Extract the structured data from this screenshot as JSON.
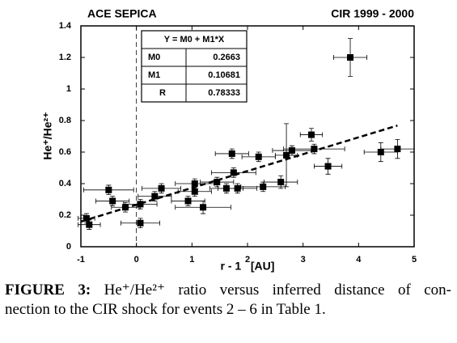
{
  "chart_data": {
    "type": "scatter",
    "title": "ACE SEPICA",
    "subtitle": "CIR 1999 - 2000",
    "x_label": "r - 1   [AU]",
    "y_label": "He⁺/He²⁺",
    "x": [
      -0.9,
      -0.85,
      -0.5,
      -0.43,
      -0.2,
      0.07,
      0.07,
      0.33,
      0.45,
      0.93,
      1.05,
      1.05,
      1.2,
      1.45,
      1.62,
      1.75,
      1.72,
      1.82,
      2.2,
      2.28,
      2.6,
      2.7,
      2.8,
      3.15,
      3.2,
      3.45,
      3.85,
      4.4,
      4.7
    ],
    "values": [
      0.18,
      0.14,
      0.36,
      0.29,
      0.25,
      0.27,
      0.15,
      0.32,
      0.37,
      0.29,
      0.35,
      0.4,
      0.25,
      0.41,
      0.37,
      0.47,
      0.59,
      0.37,
      0.57,
      0.38,
      0.41,
      0.58,
      0.61,
      0.71,
      0.62,
      0.51,
      1.2,
      0.6,
      0.62
    ],
    "xerr": [
      0.15,
      0.2,
      0.45,
      0.3,
      0.25,
      0.3,
      0.35,
      0.3,
      0.35,
      0.3,
      0.3,
      0.35,
      0.5,
      0.3,
      0.3,
      0.4,
      0.3,
      0.35,
      0.3,
      0.4,
      0.3,
      0.2,
      0.35,
      0.2,
      0.55,
      0.25,
      0.3,
      0.3,
      0.3
    ],
    "yerr": [
      0.03,
      0.03,
      0.03,
      0.03,
      0.03,
      0.03,
      0.03,
      0.03,
      0.03,
      0.03,
      0.03,
      0.03,
      0.04,
      0.03,
      0.03,
      0.03,
      0.03,
      0.03,
      0.03,
      0.03,
      0.04,
      0.2,
      0.03,
      0.04,
      0.03,
      0.05,
      0.12,
      0.06,
      0.06
    ],
    "color": "#000000",
    "xlim": [
      -1,
      5
    ],
    "xticks": [
      -1,
      0,
      1,
      2,
      3,
      4,
      5
    ],
    "ylim": [
      0,
      1.4
    ],
    "yticks": [
      0,
      0.2,
      0.4,
      0.6,
      0.8,
      1,
      1.2,
      1.4
    ],
    "grid": false,
    "fit": {
      "equation": "Y = M0 + M1*X",
      "rows": [
        {
          "name": "M0",
          "value": 0.2663
        },
        {
          "name": "M1",
          "value": 0.10681
        },
        {
          "name": "R",
          "value": 0.78333
        }
      ]
    }
  },
  "caption": {
    "label": "FIGURE 3:",
    "lines": [
      "He⁺/He²⁺ ratio versus inferred distance of con-",
      "nection to the CIR shock for events 2 – 6 in Table 1."
    ]
  }
}
